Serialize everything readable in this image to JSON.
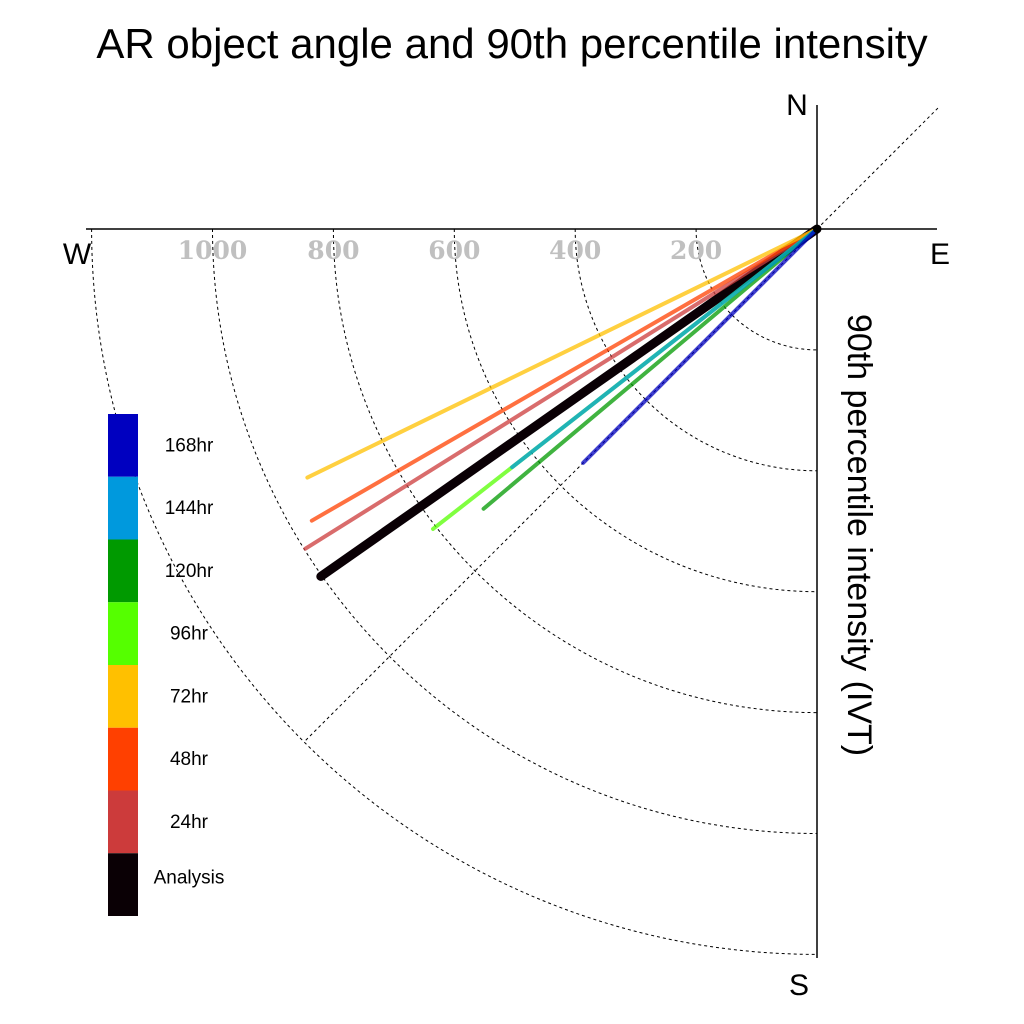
{
  "chart_data": {
    "type": "line",
    "title": "AR object angle and 90th percentile intensity",
    "ylabel": "90th percentile intensity (IVT)",
    "directions": {
      "north": "N",
      "south": "S",
      "east": "E",
      "west": "W"
    },
    "radial_ticks": [
      "200",
      "400",
      "600",
      "800",
      "1000"
    ],
    "radial_values": [
      200,
      400,
      600,
      800,
      1000
    ],
    "radial_max": 1200,
    "grid": true,
    "legend_position": "left",
    "series": [
      {
        "name": "168hr",
        "color": "#0000c0",
        "magnitude": 547,
        "angle_deg_below_west": 45
      },
      {
        "name": "144hr",
        "color": "#0099dd",
        "magnitude": 640,
        "angle_deg_below_west": 38
      },
      {
        "name": "120hr",
        "color": "#009a00",
        "magnitude": 720,
        "angle_deg_below_west": 40
      },
      {
        "name": "96hr",
        "color": "#55ff00",
        "magnitude": 806,
        "angle_deg_below_west": 38
      },
      {
        "name": "72hr",
        "color": "#ffc000",
        "magnitude": 938,
        "angle_deg_below_west": 26
      },
      {
        "name": "48hr",
        "color": "#ff4000",
        "magnitude": 965,
        "angle_deg_below_west": 30
      },
      {
        "name": "24hr",
        "color": "#cc3b3b",
        "magnitude": 998,
        "angle_deg_below_west": 32
      },
      {
        "name": "Analysis",
        "color": "#0a0005",
        "magnitude": 1002,
        "angle_deg_below_west": 35
      }
    ]
  }
}
